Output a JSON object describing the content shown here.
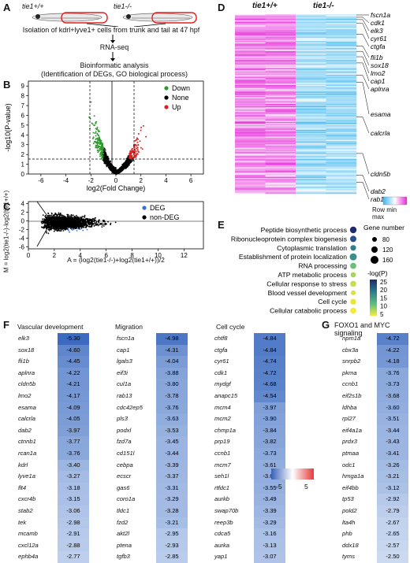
{
  "panelA": {
    "letter": "A",
    "wt_label": "tie1+/+",
    "mut_label": "tie1-/-",
    "steps": [
      "Isolation of kdrl+lyve1+ cells from trunk and tail at 47 hpf",
      "RNA-seq",
      "Bioinformatic analysis",
      "(Identification of DEGs, GO biological process)"
    ]
  },
  "panelB": {
    "letter": "B",
    "legend": [
      "Down",
      "None",
      "Up"
    ],
    "colors": {
      "down": "#2e9a2e",
      "none": "#000000",
      "up": "#e02020"
    },
    "xlabel": "log2(Fold Change)",
    "ylabel": "-log10(P-value)",
    "xticks": [
      "-6",
      "-4",
      "-2",
      "0",
      "2",
      "4",
      "6"
    ],
    "yticks": [
      "0",
      "1",
      "2",
      "3",
      "4",
      "5",
      "6",
      "7",
      "8",
      "9"
    ]
  },
  "panelC": {
    "letter": "C",
    "legend": [
      "DEG",
      "non-DEG"
    ],
    "colors": {
      "deg": "#3a6fd8",
      "nondeg": "#000000"
    },
    "ylabel": "M = log2(tie1-/-)-log2(tie1+/+)",
    "xlabel": "A = (log2(tie1-/-)+log2(tie1+/+))/2",
    "xticks": [
      "0",
      "2",
      "4",
      "6",
      "8",
      "10",
      "12"
    ],
    "yticks": [
      "-6",
      "-4",
      "-2",
      "0",
      "2",
      "4"
    ]
  },
  "panelD": {
    "letter": "D",
    "wt_label": "tie1+/+",
    "mut_label": "tie1-/-",
    "genes": [
      "fscn1a",
      "cdk1",
      "elk3",
      "cyr61",
      "ctgfa",
      "fli1b",
      "sox18",
      "lmo2",
      "cap1",
      "aplnra",
      "esama",
      "calcrla",
      "cldn5b",
      "dab2",
      "rab13"
    ],
    "scale_min": "Row min",
    "scale_max": "max"
  },
  "panelE": {
    "letter": "E",
    "terms": [
      "Peptide biosynthetic process",
      "Ribonucleoprotein complex biogenesis",
      "Cytoplasmic translation",
      "Establishment of protein localization",
      "RNA processing",
      "ATP metabolic process",
      "Cellular response to stress",
      "Blood vessel development",
      "Cell cycle",
      "Cellular catabolic process"
    ],
    "gene_number_title": "Gene number",
    "gene_number_values": [
      "80",
      "120",
      "160"
    ],
    "logp_title": "-log(P)",
    "logp_ticks": [
      "25",
      "20",
      "15",
      "10",
      "5"
    ]
  },
  "panelF": {
    "letter": "F",
    "columns": [
      {
        "title": "Vascular development",
        "rows": [
          [
            "elk3",
            "-5.30"
          ],
          [
            "sox18",
            "-4.60"
          ],
          [
            "fli1b",
            "-4.45"
          ],
          [
            "aplnra",
            "-4.22"
          ],
          [
            "cldn5b",
            "-4.21"
          ],
          [
            "lmo2",
            "-4.17"
          ],
          [
            "esama",
            "-4.09"
          ],
          [
            "calcrla",
            "-4.05"
          ],
          [
            "dab2",
            "-3.97"
          ],
          [
            "ctnnb1",
            "-3.77"
          ],
          [
            "rcan1a",
            "-3.76"
          ],
          [
            "kdrl",
            "-3.40"
          ],
          [
            "lyve1a",
            "-3.27"
          ],
          [
            "flt4",
            "-3.18"
          ],
          [
            "cxcr4b",
            "-3.15"
          ],
          [
            "stab2",
            "-3.06"
          ],
          [
            "tek",
            "-2.98"
          ],
          [
            "mcamb",
            "-2.91"
          ],
          [
            "cxcl12a",
            "-2.88"
          ],
          [
            "ephb4a",
            "-2.77"
          ]
        ]
      },
      {
        "title": "Migration",
        "rows": [
          [
            "fscn1a",
            "-4.98"
          ],
          [
            "cap1",
            "-4.31"
          ],
          [
            "lgals3",
            "-4.04"
          ],
          [
            "eif3i",
            "-3.88"
          ],
          [
            "cul1a",
            "-3.80"
          ],
          [
            "rab13",
            "-3.78"
          ],
          [
            "cdc42ep5",
            "-3.76"
          ],
          [
            "pls3",
            "-3.63"
          ],
          [
            "podxl",
            "-3.53"
          ],
          [
            "fzd7a",
            "-3.45"
          ],
          [
            "cd151l",
            "-3.44"
          ],
          [
            "cebpa",
            "-3.39"
          ],
          [
            "ecscr",
            "-3.37"
          ],
          [
            "gas6",
            "-3.31"
          ],
          [
            "coro1a",
            "-3.29"
          ],
          [
            "tldc1",
            "-3.28"
          ],
          [
            "fzd2",
            "-3.21"
          ],
          [
            "akt2l",
            "-2.95"
          ],
          [
            "ptena",
            "-2.93"
          ],
          [
            "tgfb3",
            "-2.85"
          ]
        ]
      },
      {
        "title": "Cell cycle",
        "rows": [
          [
            "chtf8",
            "-4.84"
          ],
          [
            "ctgfa",
            "-4.84"
          ],
          [
            "cyr61",
            "-4.74"
          ],
          [
            "cdk1",
            "-4.72"
          ],
          [
            "mydgf",
            "-4.68"
          ],
          [
            "anapc15",
            "-4.54"
          ],
          [
            "mcm4",
            "-3.97"
          ],
          [
            "mcm2",
            "-3.90"
          ],
          [
            "chmp1a",
            "-3.84"
          ],
          [
            "prp19",
            "-3.82"
          ],
          [
            "ccnb1",
            "-3.73"
          ],
          [
            "mcm7",
            "-3.61"
          ],
          [
            "seh1l",
            "-3.60"
          ],
          [
            "rtfdc1",
            "-3.55"
          ],
          [
            "aurkb",
            "-3.49"
          ],
          [
            "swap70b",
            "-3.39"
          ],
          [
            "reep3b",
            "-3.29"
          ],
          [
            "cdca5",
            "-3.16"
          ],
          [
            "aurka",
            "-3.13"
          ],
          [
            "yap1",
            "-3.07"
          ]
        ]
      }
    ],
    "scale_min": "-5",
    "scale_max": "5"
  },
  "panelG": {
    "letter": "G",
    "title": "FOXO1 and MYC signaling",
    "rows": [
      [
        "npm1a",
        "-4.72"
      ],
      [
        "cbx3a",
        "-4.22"
      ],
      [
        "snrpb2",
        "-4.18"
      ],
      [
        "pkma",
        "-3.76"
      ],
      [
        "ccnb1",
        "-3.73"
      ],
      [
        "eif2s1b",
        "-3.68"
      ],
      [
        "ldhba",
        "-3.60"
      ],
      [
        "rpl27",
        "-3.51"
      ],
      [
        "eif4a1a",
        "-3.44"
      ],
      [
        "prdx3",
        "-3.43"
      ],
      [
        "ptmaa",
        "-3.41"
      ],
      [
        "odc1",
        "-3.26"
      ],
      [
        "hmga1a",
        "-3.21"
      ],
      [
        "eif4bb",
        "-3.12"
      ],
      [
        "tp53",
        "-2.92"
      ],
      [
        "pold2",
        "-2.79"
      ],
      [
        "ltа4h",
        "-2.67"
      ],
      [
        "phb",
        "-2.65"
      ],
      [
        "ddx18",
        "-2.57"
      ],
      [
        "tyms",
        "-2.50"
      ]
    ]
  }
}
